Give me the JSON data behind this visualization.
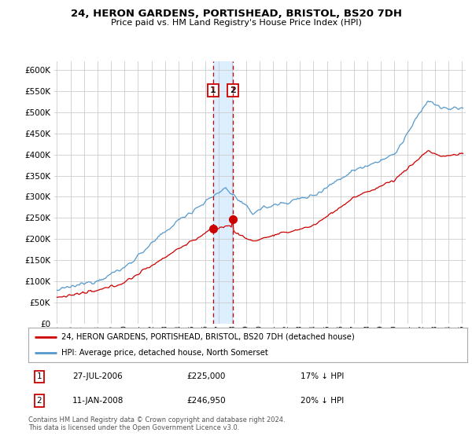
{
  "title": "24, HERON GARDENS, PORTISHEAD, BRISTOL, BS20 7DH",
  "subtitle": "Price paid vs. HM Land Registry's House Price Index (HPI)",
  "legend_line1": "24, HERON GARDENS, PORTISHEAD, BRISTOL, BS20 7DH (detached house)",
  "legend_line2": "HPI: Average price, detached house, North Somerset",
  "footnote": "Contains HM Land Registry data © Crown copyright and database right 2024.\nThis data is licensed under the Open Government Licence v3.0.",
  "transaction1": {
    "label": "1",
    "date": "27-JUL-2006",
    "price": 225000,
    "note": "17% ↓ HPI",
    "year": 2006.57
  },
  "transaction2": {
    "label": "2",
    "date": "11-JAN-2008",
    "price": 246950,
    "note": "20% ↓ HPI",
    "year": 2008.03
  },
  "red_color": "#cc0000",
  "blue_color": "#5599cc",
  "shade_color": "#ddeeff",
  "grid_color": "#cccccc",
  "background_color": "#ffffff",
  "ylim": [
    0,
    620000
  ],
  "yticks": [
    0,
    50000,
    100000,
    150000,
    200000,
    250000,
    300000,
    350000,
    400000,
    450000,
    500000,
    550000,
    600000
  ],
  "xlim_start": 1994.8,
  "xlim_end": 2025.3
}
